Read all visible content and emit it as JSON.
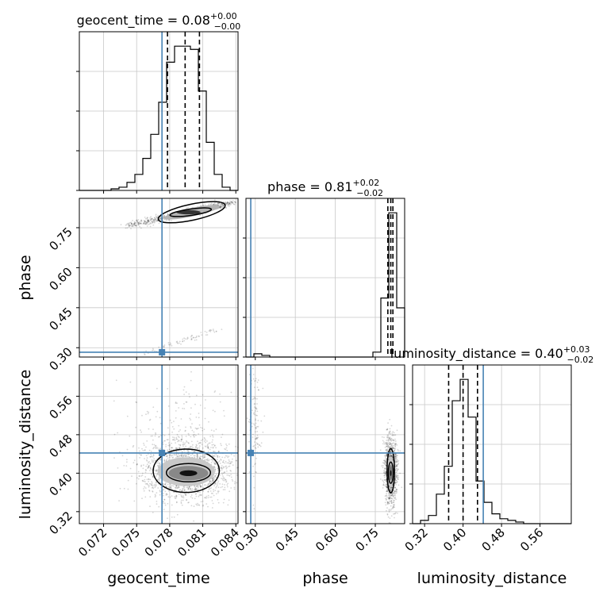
{
  "chart_data": {
    "type": "corner",
    "parameters": [
      "geocent_time",
      "phase",
      "luminosity_distance"
    ],
    "truths": {
      "geocent_time": 0.0773,
      "phase": 0.283,
      "luminosity_distance": 0.442
    },
    "truth_color": "#4682b4",
    "titles": {
      "geocent_time": {
        "text": "geocent_time = 0.08",
        "sup": "+0.00",
        "sub": "−0.00"
      },
      "phase": {
        "text": "phase = 0.81",
        "sup": "+0.02",
        "sub": "−0.02"
      },
      "luminosity_distance": {
        "text": "luminosity_distance = 0.40",
        "sup": "+0.03",
        "sub": "−0.02"
      }
    },
    "axes": {
      "geocent_time": {
        "label": "geocent_time",
        "range": [
          0.0698,
          0.0842
        ],
        "ticks": [
          0.072,
          0.075,
          0.078,
          0.081,
          0.084
        ],
        "tick_labels": [
          "0.072",
          "0.075",
          "0.078",
          "0.081",
          "0.084"
        ]
      },
      "phase": {
        "label": "phase",
        "range": [
          0.265,
          0.86
        ],
        "ticks": [
          0.3,
          0.45,
          0.6,
          0.75
        ],
        "tick_labels": [
          "0.30",
          "0.45",
          "0.60",
          "0.75"
        ]
      },
      "luminosity_distance": {
        "label": "luminosity_distance",
        "range": [
          0.295,
          0.625
        ],
        "ticks": [
          0.32,
          0.4,
          0.48,
          0.56
        ],
        "tick_labels": [
          "0.32",
          "0.40",
          "0.48",
          "0.56"
        ]
      }
    },
    "quantiles": {
      "geocent_time": [
        0.0778,
        0.0794,
        0.0807
      ],
      "phase": [
        0.797,
        0.808,
        0.816
      ],
      "luminosity_distance": [
        0.37,
        0.4,
        0.43
      ]
    },
    "histograms": {
      "geocent_time": {
        "edges": [
          0.0698,
          0.07052,
          0.07124,
          0.07196,
          0.07268,
          0.0734,
          0.07412,
          0.07484,
          0.07556,
          0.07628,
          0.077,
          0.07772,
          0.07844,
          0.07916,
          0.07988,
          0.0806,
          0.08132,
          0.08204,
          0.08276,
          0.08348,
          0.0842
        ],
        "counts": [
          0,
          0,
          0,
          0,
          1,
          2,
          5,
          10,
          20,
          35,
          55,
          80,
          90,
          90,
          88,
          62,
          30,
          10,
          2,
          0
        ]
      },
      "phase": {
        "edges": [
          0.265,
          0.29475,
          0.3245,
          0.35425,
          0.384,
          0.41375,
          0.4435,
          0.47325,
          0.503,
          0.53275,
          0.5625,
          0.59225,
          0.622,
          0.65175,
          0.6815,
          0.71125,
          0.741,
          0.77075,
          0.8005,
          0.83025,
          0.86
        ],
        "counts": [
          0,
          2,
          1,
          0,
          0,
          0,
          0,
          0,
          0,
          0,
          0,
          0,
          0,
          0,
          0,
          0,
          3,
          36,
          88,
          30
        ]
      },
      "luminosity_distance": {
        "edges": [
          0.295,
          0.3115,
          0.328,
          0.3445,
          0.361,
          0.3775,
          0.394,
          0.4105,
          0.427,
          0.4435,
          0.46,
          0.4765,
          0.493,
          0.5095,
          0.526,
          0.5425,
          0.559,
          0.5755,
          0.592,
          0.6085,
          0.625
        ],
        "counts": [
          0,
          2,
          5,
          18,
          35,
          75,
          88,
          65,
          26,
          13,
          6,
          3,
          2,
          1,
          0,
          0,
          0,
          0,
          0,
          0
        ]
      }
    },
    "grid": true,
    "xlabel_rotation": 45
  }
}
